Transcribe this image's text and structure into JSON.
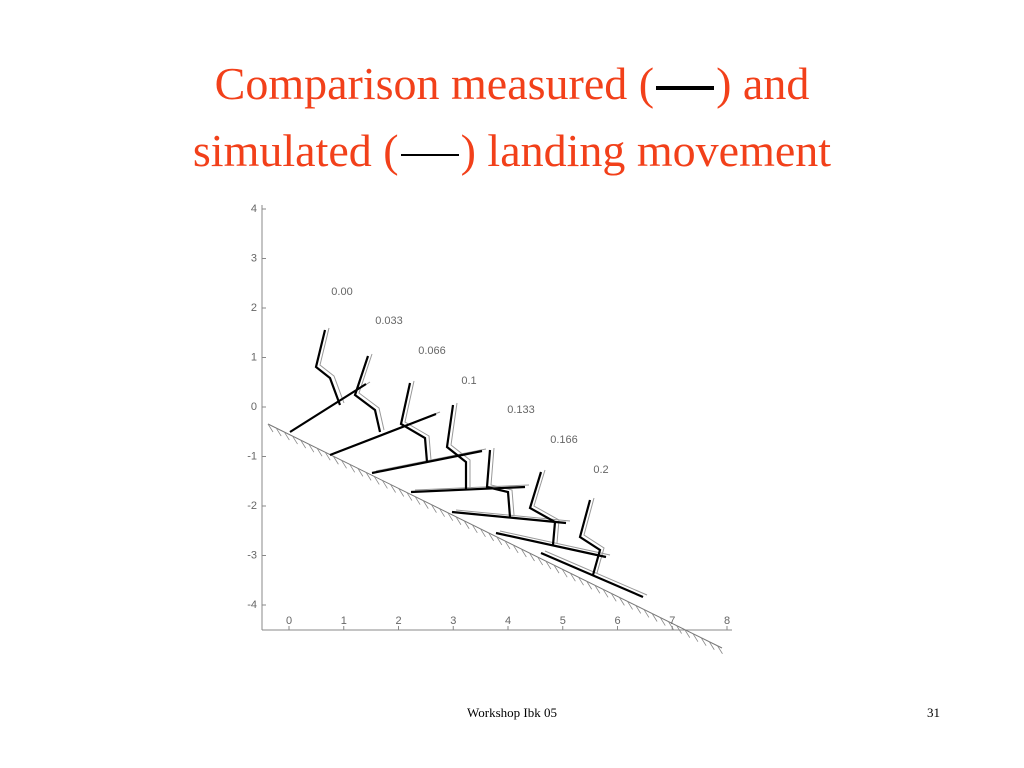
{
  "title": {
    "line1_start": "Comparison measured (",
    "line1_end": ") and",
    "line2_start": "simulated (",
    "line2_end": ") landing movement"
  },
  "figure": {
    "xticks": [
      0,
      1,
      2,
      3,
      4,
      5,
      6,
      7,
      8
    ],
    "yticks": [
      -4,
      -3,
      -2,
      -1,
      0,
      1,
      2,
      3,
      4
    ],
    "time_labels": [
      "0.00",
      "0.033",
      "0.066",
      "0.1",
      "0.133",
      "0.166",
      "0.2"
    ]
  },
  "footer": {
    "text": "Workshop Ibk 05",
    "page": "31"
  }
}
